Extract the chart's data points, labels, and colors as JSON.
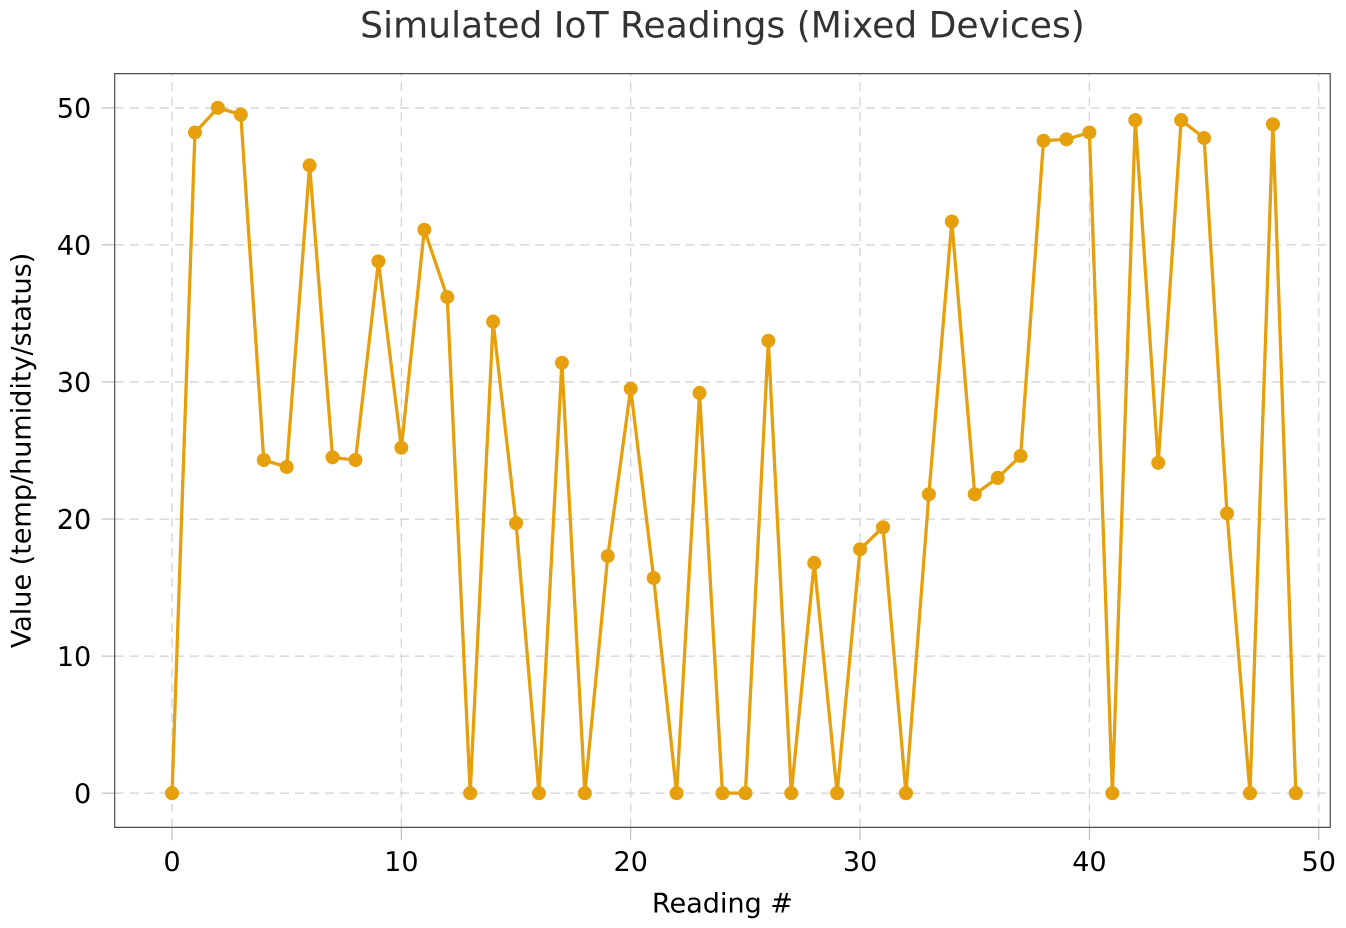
{
  "chart_data": {
    "type": "line",
    "title": "Simulated IoT Readings (Mixed Devices)",
    "xlabel": "Reading #",
    "ylabel": "Value (temp/humidity/status)",
    "x": [
      0,
      1,
      2,
      3,
      4,
      5,
      6,
      7,
      8,
      9,
      10,
      11,
      12,
      13,
      14,
      15,
      16,
      17,
      18,
      19,
      20,
      21,
      22,
      23,
      24,
      25,
      26,
      27,
      28,
      29,
      30,
      31,
      32,
      33,
      34,
      35,
      36,
      37,
      38,
      39,
      40,
      41,
      42,
      43,
      44,
      45,
      46,
      47,
      48,
      49
    ],
    "series": [
      {
        "color": "#e6a00e",
        "values": [
          0,
          48.2,
          50.0,
          49.5,
          24.3,
          23.8,
          45.8,
          24.5,
          24.3,
          38.8,
          25.2,
          41.1,
          36.2,
          0,
          34.4,
          19.7,
          0,
          31.4,
          0,
          17.3,
          29.5,
          15.7,
          0,
          29.2,
          0,
          0,
          33.0,
          0,
          16.8,
          0,
          17.8,
          19.4,
          0,
          21.8,
          41.7,
          21.8,
          23.0,
          24.6,
          47.6,
          47.7,
          48.2,
          0,
          49.1,
          24.1,
          49.1,
          47.8,
          20.4,
          0,
          48.8,
          0
        ]
      }
    ],
    "xlim": [
      -2.5,
      50.5
    ],
    "ylim": [
      -2.5,
      52.5
    ],
    "xticks": [
      0,
      10,
      20,
      30,
      40,
      50
    ],
    "yticks": [
      0,
      10,
      20,
      30,
      40,
      50
    ],
    "grid": true,
    "marker": "circle",
    "line_style": "solid"
  }
}
